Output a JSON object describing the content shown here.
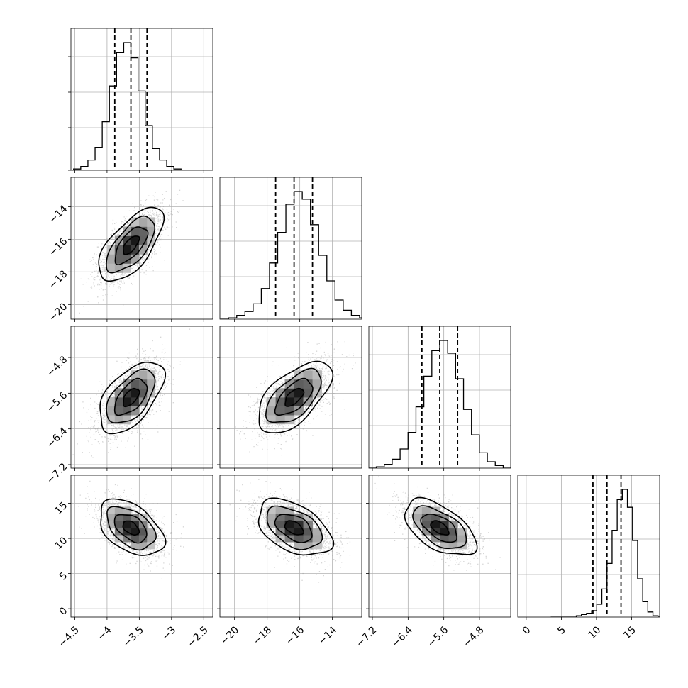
{
  "chart_data": {
    "type": "corner",
    "parameters": 4,
    "title": "",
    "grid": true,
    "quantiles": [
      0.16,
      0.5,
      0.84
    ],
    "levels_sigma": [
      0.5,
      1.0,
      1.5,
      2.0
    ],
    "axes": [
      {
        "ticks": [
          -4.5,
          -4.0,
          -3.5,
          -3.0,
          -2.5
        ],
        "range": [
          -4.56,
          -2.36
        ],
        "mean": -3.63,
        "std": 0.25,
        "quantile_values": [
          -3.88,
          -3.63,
          -3.38
        ]
      },
      {
        "ticks": [
          -20,
          -18,
          -16,
          -14
        ],
        "range": [
          -20.9,
          -12.2
        ],
        "mean": -16.35,
        "std": 1.13,
        "quantile_values": [
          -17.48,
          -16.35,
          -15.22
        ]
      },
      {
        "ticks": [
          -7.2,
          -6.4,
          -5.6,
          -4.8
        ],
        "range": [
          -7.28,
          -4.1
        ],
        "mean": -5.69,
        "std": 0.4,
        "quantile_values": [
          -6.09,
          -5.69,
          -5.29
        ]
      },
      {
        "ticks": [
          0,
          5,
          10,
          15
        ],
        "range": [
          -1.2,
          19.0
        ],
        "mean": 11.5,
        "std": 2.0,
        "quantile_values": [
          9.5,
          11.5,
          13.5
        ]
      }
    ],
    "correlations": [
      {
        "pair": [
          0,
          1
        ],
        "rho": 0.65
      },
      {
        "pair": [
          0,
          2
        ],
        "rho": 0.55
      },
      {
        "pair": [
          1,
          2
        ],
        "rho": 0.6
      },
      {
        "pair": [
          0,
          3
        ],
        "rho": -0.45
      },
      {
        "pair": [
          1,
          3
        ],
        "rho": -0.45
      },
      {
        "pair": [
          2,
          3
        ],
        "rho": -0.55
      }
    ],
    "histograms": [
      [
        0,
        1,
        3,
        8,
        18,
        38,
        66,
        92,
        100,
        88,
        62,
        35,
        17,
        8,
        3,
        1,
        0,
        0
      ],
      [
        0,
        1,
        3,
        6,
        12,
        24,
        44,
        68,
        90,
        100,
        94,
        74,
        50,
        30,
        15,
        7,
        3,
        1
      ],
      [
        0,
        1,
        3,
        7,
        15,
        28,
        48,
        72,
        92,
        100,
        90,
        70,
        46,
        26,
        12,
        5,
        2,
        0
      ],
      [
        0,
        0,
        0,
        0,
        0,
        1,
        2,
        3,
        5,
        10,
        22,
        42,
        68,
        92,
        100,
        86,
        60,
        30,
        12,
        4,
        1,
        0
      ]
    ]
  }
}
